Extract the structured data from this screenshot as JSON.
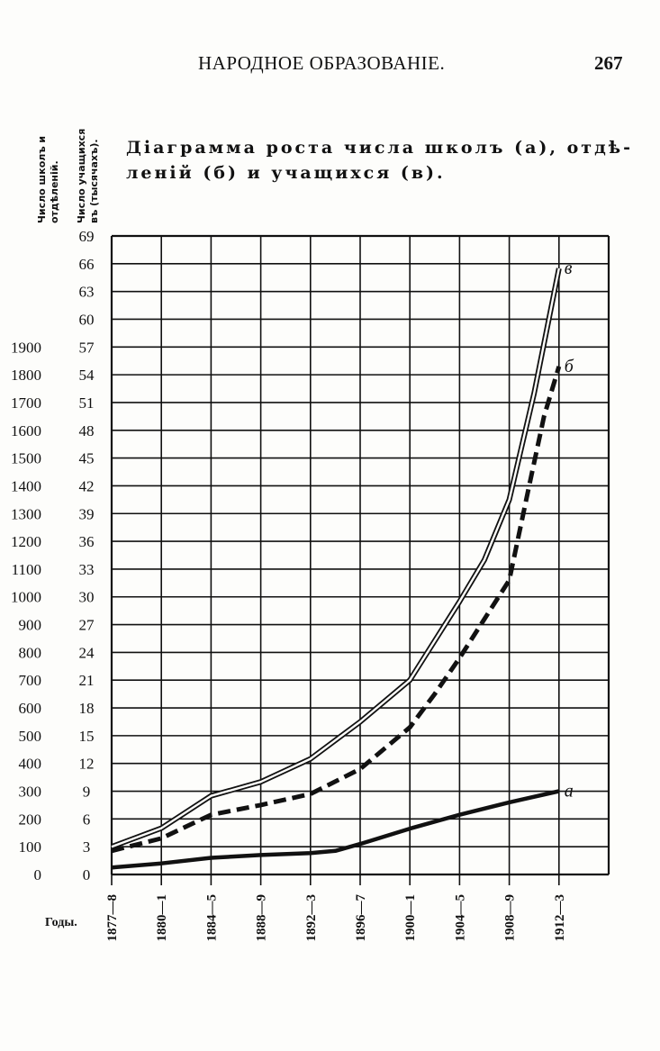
{
  "header": {
    "running_title": "НАРОДНОЕ ОБРАЗОВАНІЕ.",
    "page_number": "267"
  },
  "chart_data": {
    "type": "line",
    "title_line1": "Діаграмма роста числа школъ (а), отдѣ-",
    "title_line2": "леній (б) и учащихся (в).",
    "axis_titles": {
      "left_1": "Число школъ и",
      "left_2": "отдѣленій.",
      "right_1": "Число учащихся",
      "right_2": "въ (тысячахъ)."
    },
    "xlabel": "Годы.",
    "categories": [
      "1877—8",
      "1880—1",
      "1884—5",
      "1888—9",
      "1892—3",
      "1896—7",
      "1900—1",
      "1904—5",
      "1908—9",
      "1912—3"
    ],
    "y_left_ticks": [
      "1900",
      "1800",
      "1700",
      "1600",
      "1500",
      "1400",
      "1300",
      "1200",
      "1100",
      "1000",
      "900",
      "800",
      "700",
      "600",
      "500",
      "400",
      "300",
      "200",
      "100",
      "0"
    ],
    "y_right_ticks": [
      "69",
      "66",
      "63",
      "60",
      "57",
      "54",
      "51",
      "48",
      "45",
      "42",
      "39",
      "36",
      "33",
      "30",
      "27",
      "24",
      "21",
      "18",
      "15",
      "12",
      "9",
      "6",
      "3",
      "0"
    ],
    "ylim_right": [
      0,
      69
    ],
    "ylim_left": [
      0,
      2300
    ],
    "grid": true,
    "series": [
      {
        "name": "а",
        "style": "solid-thick",
        "axis": "left",
        "x": [
          0,
          1,
          2,
          3,
          4,
          4.5,
          5,
          6,
          7,
          8,
          9
        ],
        "values": [
          25,
          40,
          60,
          70,
          77,
          85,
          110,
          165,
          215,
          260,
          300
        ]
      },
      {
        "name": "б",
        "style": "dashed-thick",
        "axis": "left",
        "x": [
          0,
          1,
          2,
          3,
          4,
          5,
          6,
          6.5,
          7,
          7.5,
          8,
          8.4,
          8.7,
          9
        ],
        "values": [
          85,
          130,
          215,
          250,
          290,
          380,
          530,
          650,
          780,
          920,
          1060,
          1400,
          1650,
          1830
        ]
      },
      {
        "name": "в",
        "style": "double-line",
        "axis": "right",
        "x": [
          0,
          1,
          2,
          3,
          4,
          5,
          6,
          7,
          7.5,
          8,
          8.5,
          9
        ],
        "values": [
          3,
          5,
          8.5,
          10,
          12.5,
          16.5,
          21,
          29.5,
          34,
          40.5,
          52,
          65.5
        ]
      }
    ]
  }
}
